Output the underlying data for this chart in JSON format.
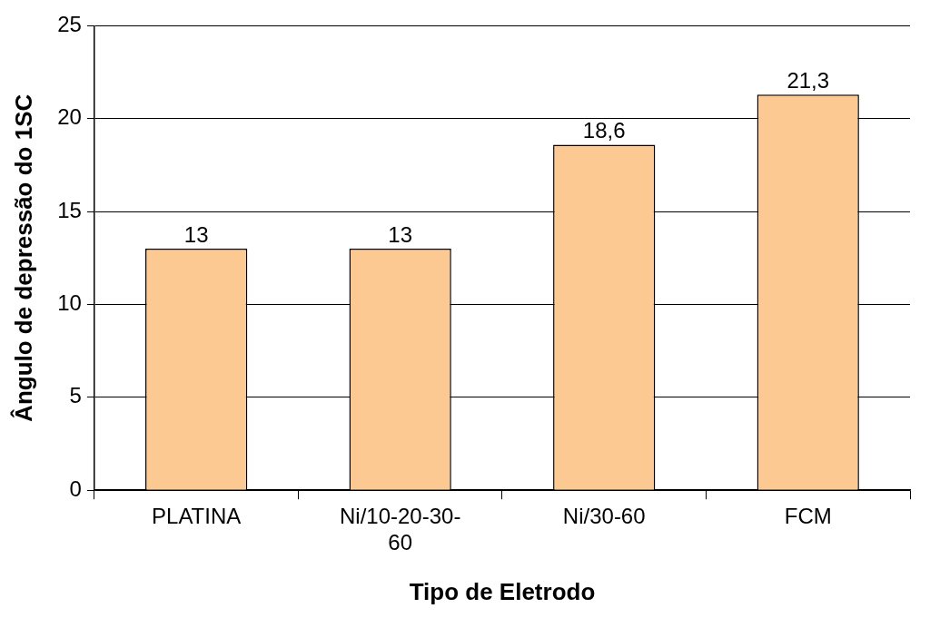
{
  "chart_data": {
    "type": "bar",
    "xlabel": "Tipo de Eletrodo",
    "ylabel": "Ângulo de depressão do 1SC",
    "categories": [
      "PLATINA",
      "Ni/10-20-30-60",
      "Ni/30-60",
      "FCM"
    ],
    "values": [
      13,
      13,
      18.6,
      21.3
    ],
    "value_labels": [
      "13",
      "13",
      "18,6",
      "21,3"
    ],
    "color": "#fdc993",
    "ylim": [
      0,
      25
    ],
    "yticks": [
      0,
      5,
      10,
      15,
      20,
      25
    ],
    "grid": "y",
    "legend": false
  }
}
